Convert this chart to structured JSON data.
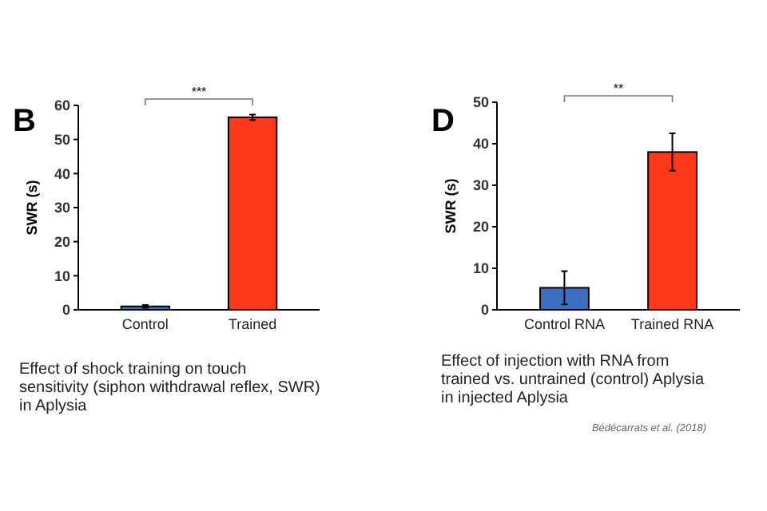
{
  "chart_data": [
    {
      "type": "bar",
      "title": "B",
      "ylabel": "SWR (s)",
      "categories": [
        "Control",
        "Trained"
      ],
      "values": [
        1,
        56.5
      ],
      "errors": [
        0.4,
        0.8
      ],
      "colors": [
        "#3a6fc4",
        "#ff3a1a"
      ],
      "ylim": [
        0,
        60
      ],
      "yticks": [
        0,
        10,
        20,
        30,
        40,
        50,
        60
      ],
      "annotations": [
        "***",
        "Effect of shock training on touch sensitivity (siphon withdrawal reflex, SWR) in Aplysia"
      ]
    },
    {
      "type": "bar",
      "title": "D",
      "ylabel": "SWR (s)",
      "categories": [
        "Control RNA",
        "Trained RNA"
      ],
      "values": [
        5.3,
        38
      ],
      "errors": [
        4,
        4.5
      ],
      "colors": [
        "#3a6fc4",
        "#ff3a1a"
      ],
      "ylim": [
        0,
        50
      ],
      "yticks": [
        0,
        10,
        20,
        30,
        40,
        50
      ],
      "annotations": [
        "**",
        "Effect of injection with RNA from trained vs. untrained (control) Aplysia in injected Aplysia",
        "Bédécarrats et al. (2018)"
      ]
    }
  ]
}
